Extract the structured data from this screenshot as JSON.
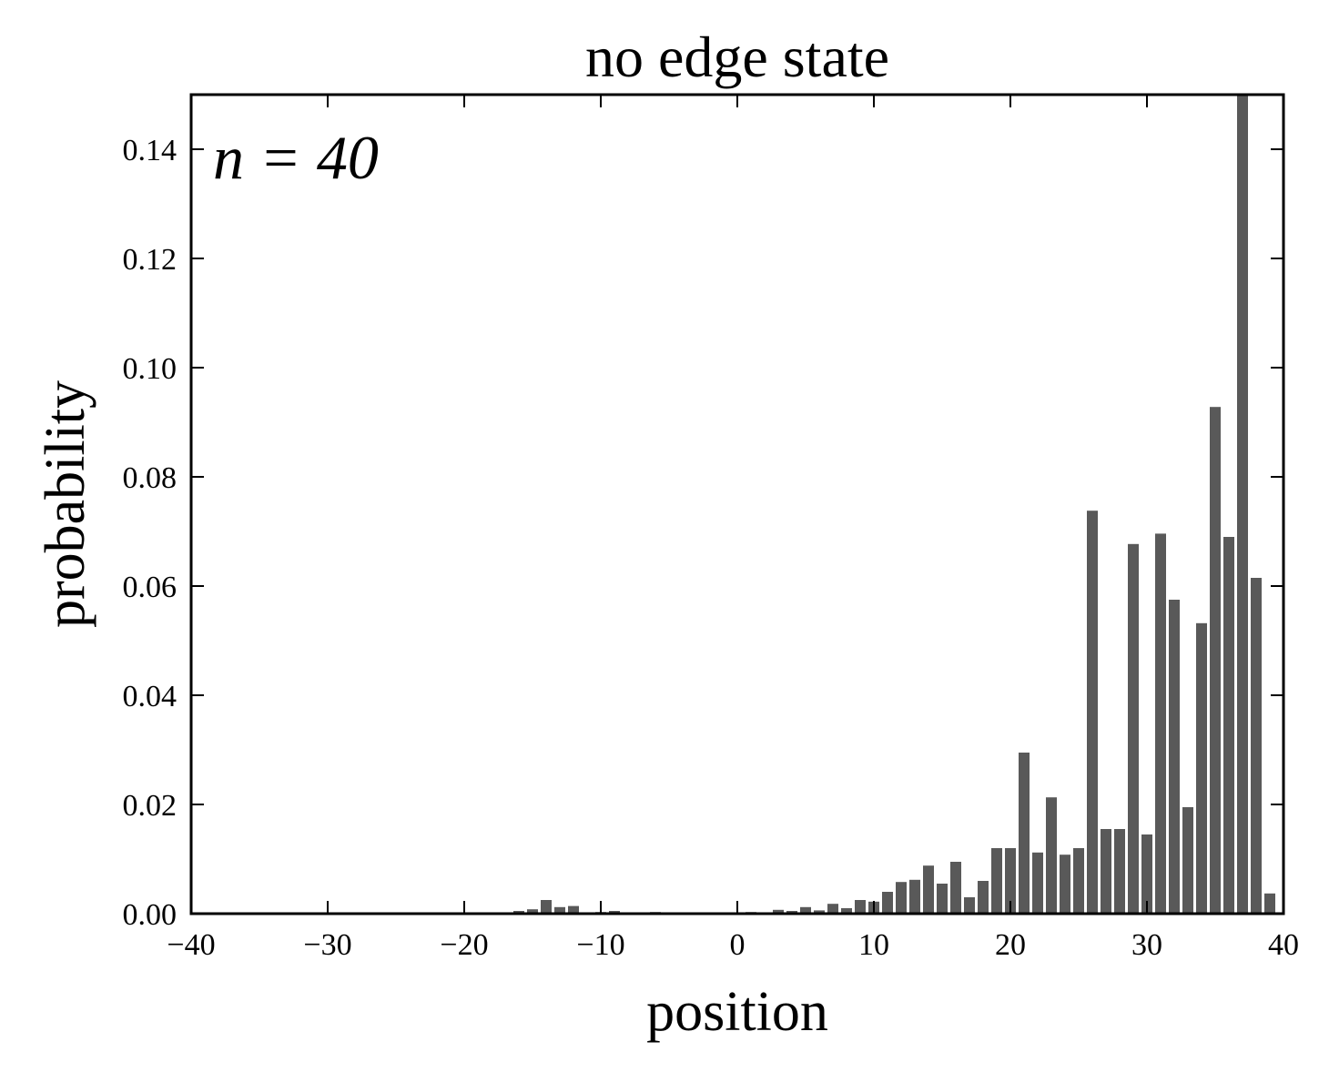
{
  "chart_data": {
    "type": "bar",
    "title": "no edge state",
    "xlabel": "position",
    "ylabel": "probability",
    "annotation": "n = 40",
    "xlim": [
      -40,
      40
    ],
    "ylim": [
      0,
      0.15
    ],
    "xticks": [
      -40,
      -30,
      -20,
      -10,
      0,
      10,
      20,
      30,
      40
    ],
    "xtick_labels": [
      "−40",
      "−30",
      "−20",
      "−10",
      "0",
      "10",
      "20",
      "30",
      "40"
    ],
    "yticks": [
      0.0,
      0.02,
      0.04,
      0.06,
      0.08,
      0.1,
      0.12,
      0.14
    ],
    "ytick_labels": [
      "0.00",
      "0.02",
      "0.04",
      "0.06",
      "0.08",
      "0.10",
      "0.12",
      "0.14"
    ],
    "bar_color": "#595959",
    "grid": false,
    "x": [
      -16,
      -15,
      -14,
      -13,
      -12,
      -10,
      -9,
      -6,
      1,
      3,
      4,
      5,
      6,
      7,
      8,
      9,
      10,
      11,
      12,
      13,
      14,
      15,
      16,
      17,
      18,
      19,
      20,
      21,
      22,
      23,
      24,
      25,
      26,
      27,
      28,
      29,
      30,
      31,
      32,
      33,
      34,
      35,
      36,
      37,
      38,
      39
    ],
    "values": [
      0.0005,
      0.0008,
      0.0025,
      0.0012,
      0.0014,
      0.0003,
      0.0005,
      0.0003,
      0.0003,
      0.0007,
      0.0005,
      0.0012,
      0.0006,
      0.0018,
      0.001,
      0.0025,
      0.0022,
      0.004,
      0.0058,
      0.0062,
      0.0088,
      0.0055,
      0.0095,
      0.003,
      0.006,
      0.012,
      0.012,
      0.0295,
      0.0112,
      0.0213,
      0.0108,
      0.012,
      0.0738,
      0.0155,
      0.0155,
      0.0677,
      0.0145,
      0.0696,
      0.0575,
      0.0195,
      0.0532,
      0.0928,
      0.069,
      0.15,
      0.0615,
      0.0037
    ]
  }
}
